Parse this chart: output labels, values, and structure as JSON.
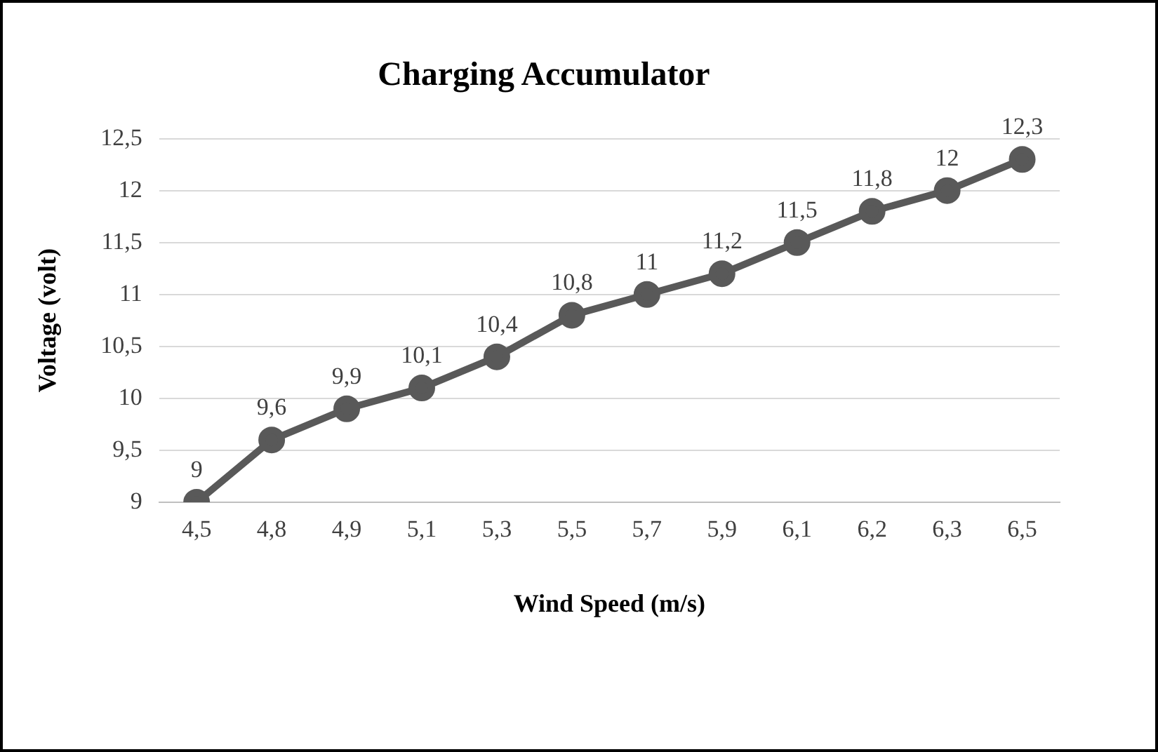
{
  "chart_data": {
    "type": "line",
    "title": "Charging Accumulator",
    "xlabel": "Wind Speed (m/s)",
    "ylabel": "Voltage (volt)",
    "categories": [
      "4,5",
      "4,8",
      "4,9",
      "5,1",
      "5,3",
      "5,5",
      "5,7",
      "5,9",
      "6,1",
      "6,2",
      "6,3",
      "6,5"
    ],
    "series": [
      {
        "color": "#595959",
        "values": [
          9,
          9.6,
          9.9,
          10.1,
          10.4,
          10.8,
          11,
          11.2,
          11.5,
          11.8,
          12,
          12.3
        ],
        "value_labels": [
          "9",
          "9,6",
          "9,9",
          "10,1",
          "10,4",
          "10,8",
          "11",
          "11,2",
          "11,5",
          "11,8",
          "12",
          "12,3"
        ]
      }
    ],
    "ylim": [
      9,
      12.5
    ],
    "yticks": [
      9,
      {
        "value": 9.5,
        "label": "9,5"
      },
      10,
      {
        "value": 10.5,
        "label": "10,5"
      },
      11,
      {
        "value": 11.5,
        "label": "11,5"
      },
      12,
      {
        "value": 12.5,
        "label": "12,5"
      }
    ],
    "grid": "y",
    "legend": false,
    "marker": "circle",
    "line_style": "solid"
  }
}
